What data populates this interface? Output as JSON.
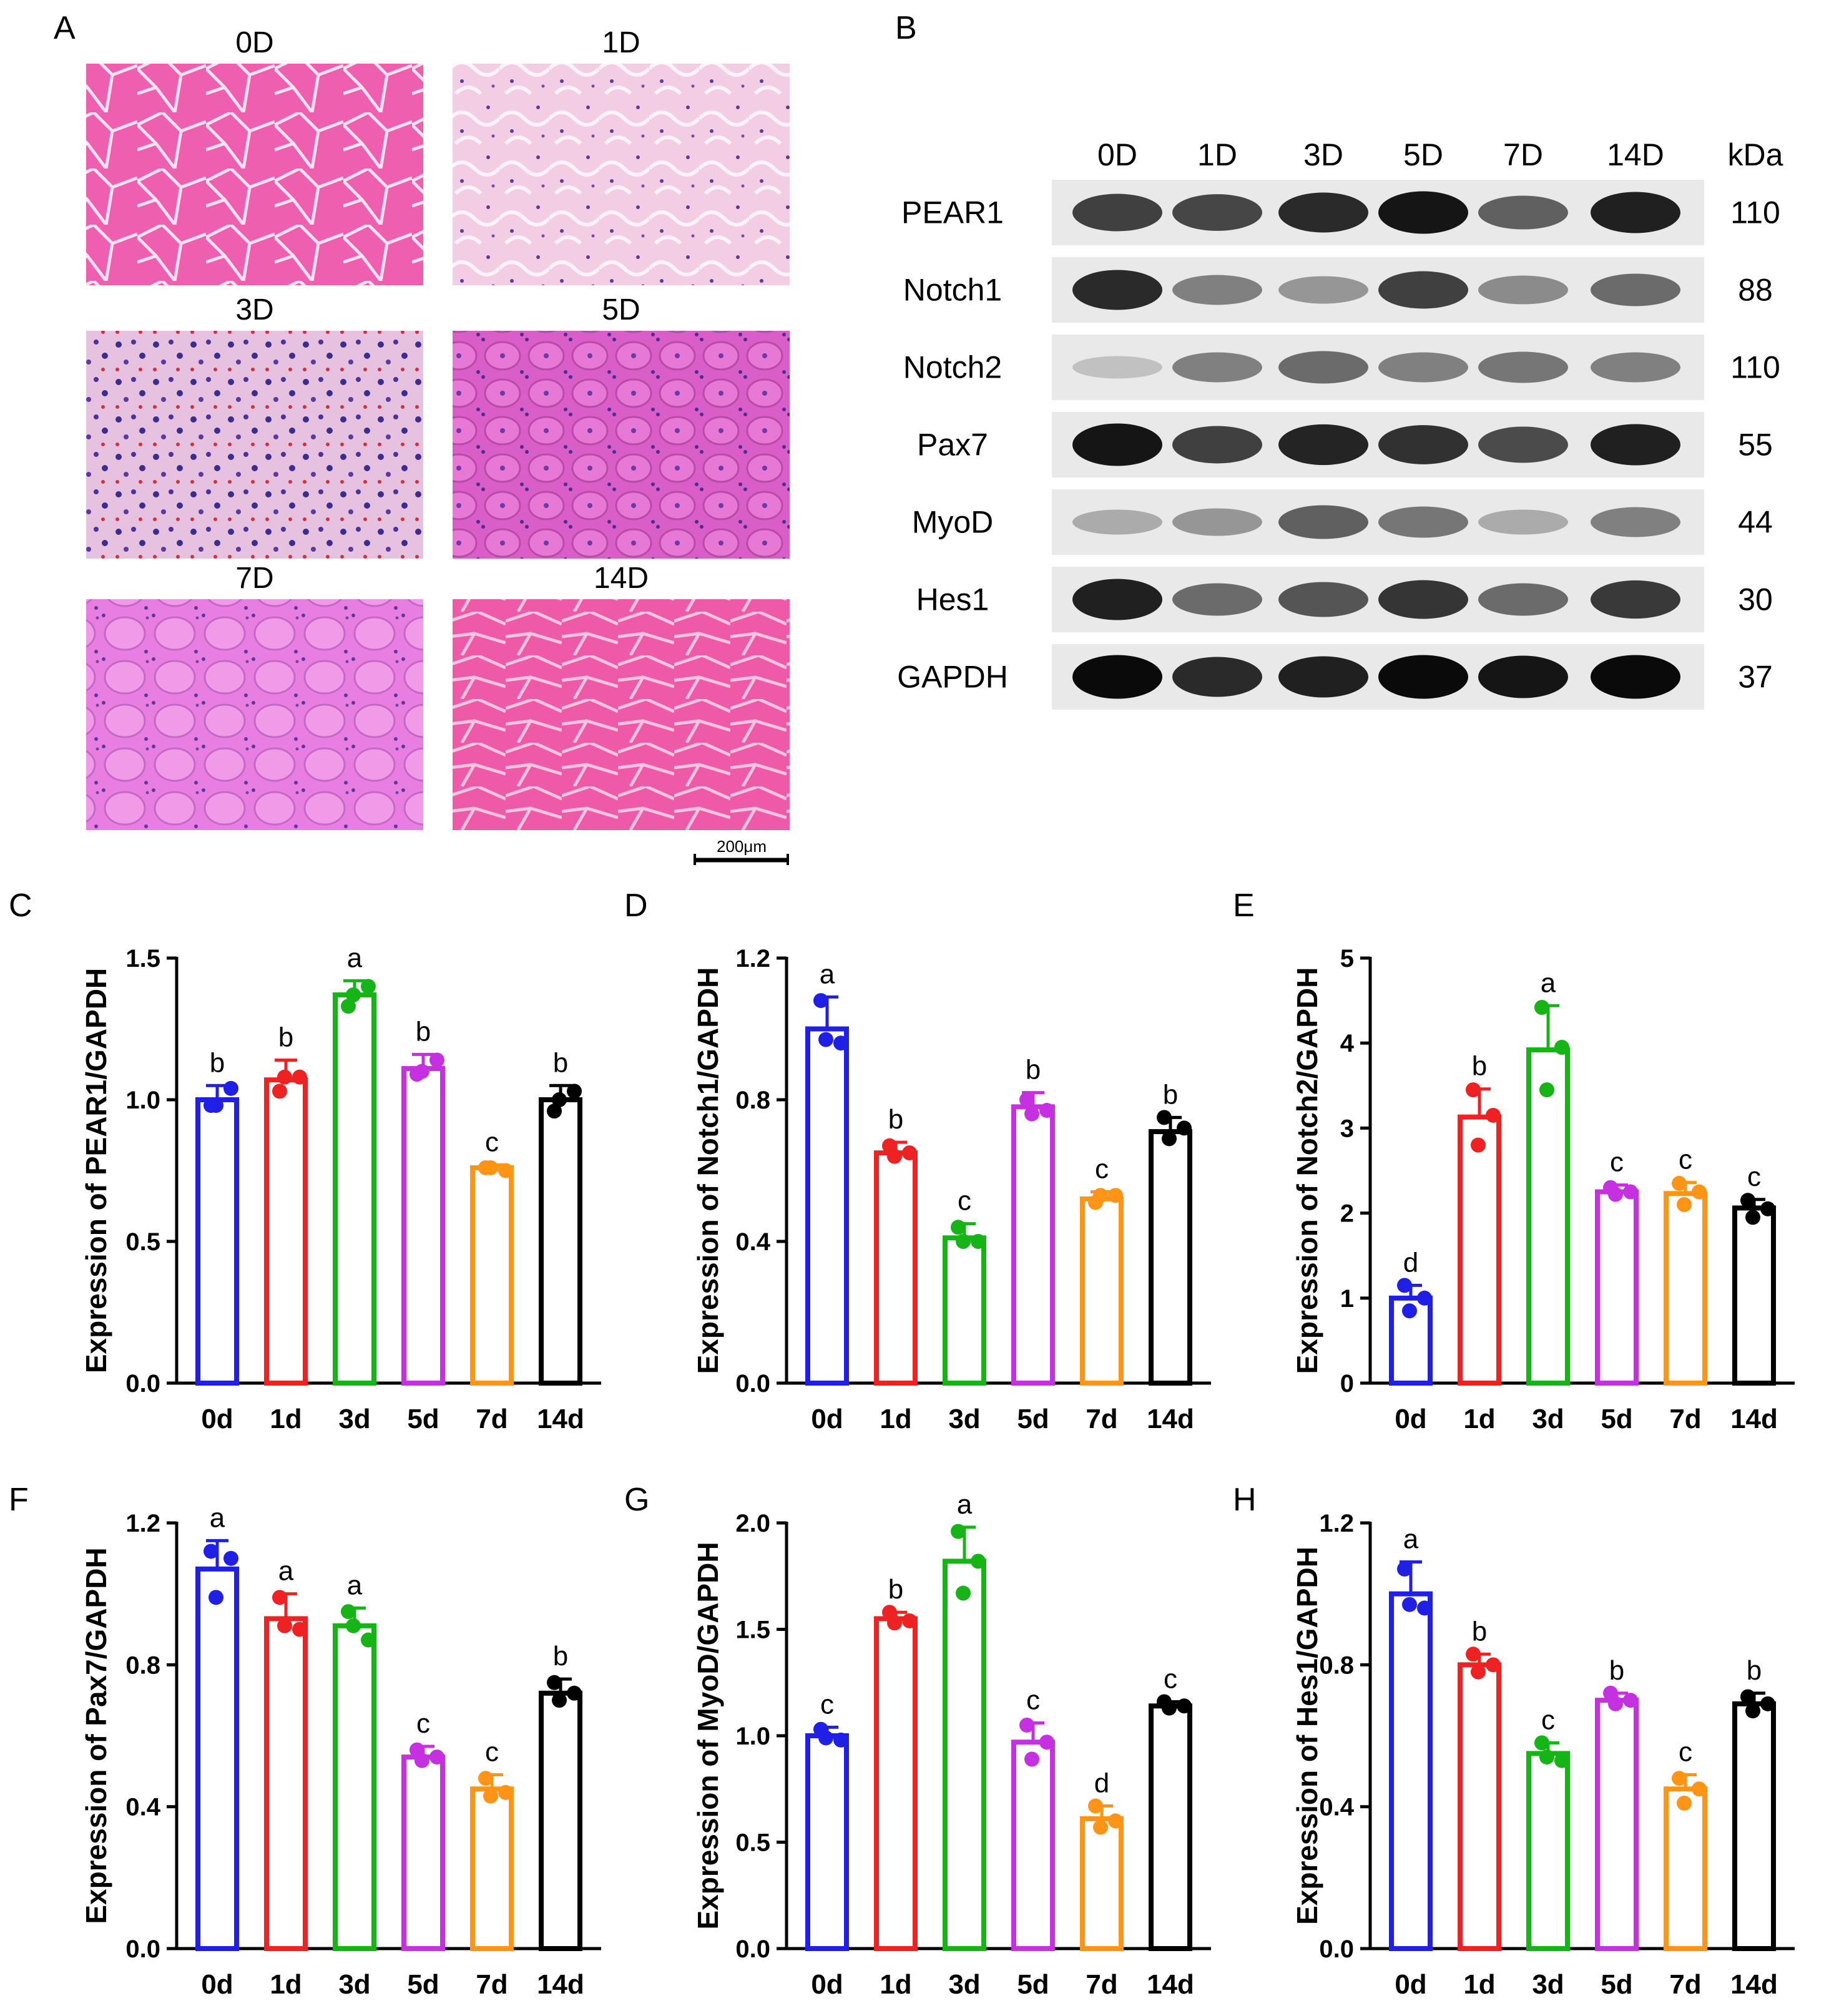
{
  "panel_A": {
    "letter": "A",
    "days": [
      "0D",
      "1D",
      "3D",
      "5D",
      "7D",
      "14D"
    ],
    "scale_bar": "200μm"
  },
  "panel_B": {
    "letter": "B",
    "lanes": [
      "0D",
      "1D",
      "3D",
      "5D",
      "7D",
      "14D"
    ],
    "kda_header": "kDa",
    "proteins": [
      {
        "name": "PEAR1",
        "kda": "110",
        "intensity": [
          0.75,
          0.72,
          0.85,
          0.95,
          0.6,
          0.9
        ]
      },
      {
        "name": "Notch1",
        "kda": "88",
        "intensity": [
          0.85,
          0.45,
          0.35,
          0.75,
          0.4,
          0.55
        ]
      },
      {
        "name": "Notch2",
        "kda": "110",
        "intensity": [
          0.15,
          0.45,
          0.55,
          0.45,
          0.5,
          0.45
        ]
      },
      {
        "name": "Pax7",
        "kda": "55",
        "intensity": [
          0.95,
          0.75,
          0.88,
          0.82,
          0.7,
          0.9
        ]
      },
      {
        "name": "MyoD",
        "kda": "44",
        "intensity": [
          0.25,
          0.35,
          0.6,
          0.5,
          0.25,
          0.45
        ]
      },
      {
        "name": "Hes1",
        "kda": "30",
        "intensity": [
          0.9,
          0.55,
          0.65,
          0.8,
          0.55,
          0.78
        ]
      },
      {
        "name": "GAPDH",
        "kda": "37",
        "intensity": [
          1.0,
          0.85,
          0.9,
          1.0,
          0.95,
          1.0
        ]
      }
    ]
  },
  "colors": [
    "#1f1fe6",
    "#ee2222",
    "#17b417",
    "#c530e0",
    "#ff9416",
    "#000000"
  ],
  "chart_data": [
    {
      "panel": "C",
      "type": "bar",
      "ylabel": "Expression of PEAR1/GAPDH",
      "categories": [
        "0d",
        "1d",
        "3d",
        "5d",
        "7d",
        "14d"
      ],
      "values": [
        1.0,
        1.07,
        1.37,
        1.11,
        0.76,
        1.0
      ],
      "errors": [
        0.05,
        0.07,
        0.05,
        0.05,
        0.01,
        0.05
      ],
      "points": [
        [
          0.98,
          1.04,
          0.98
        ],
        [
          1.03,
          1.08,
          1.08
        ],
        [
          1.33,
          1.4,
          1.37
        ],
        [
          1.09,
          1.14,
          1.1
        ],
        [
          0.76,
          0.75,
          0.76
        ],
        [
          0.96,
          1.03,
          1.0
        ]
      ],
      "sig": [
        "b",
        "b",
        "a",
        "b",
        "c",
        "b"
      ],
      "ylim": [
        0,
        1.5
      ],
      "yticks": [
        "0.0",
        "0.5",
        "1.0",
        "1.5"
      ]
    },
    {
      "panel": "D",
      "type": "bar",
      "ylabel": "Expression of Notch1/GAPDH",
      "categories": [
        "0d",
        "1d",
        "3d",
        "5d",
        "7d",
        "14d"
      ],
      "values": [
        1.0,
        0.65,
        0.41,
        0.78,
        0.52,
        0.71
      ],
      "errors": [
        0.09,
        0.03,
        0.04,
        0.04,
        0.02,
        0.04
      ],
      "points": [
        [
          1.08,
          0.96,
          0.97
        ],
        [
          0.67,
          0.65,
          0.64
        ],
        [
          0.44,
          0.4,
          0.4
        ],
        [
          0.8,
          0.77,
          0.76
        ],
        [
          0.51,
          0.53,
          0.53
        ],
        [
          0.75,
          0.72,
          0.69
        ]
      ],
      "sig": [
        "a",
        "b",
        "c",
        "b",
        "c",
        "b"
      ],
      "ylim": [
        0,
        1.2
      ],
      "yticks": [
        "0.0",
        "0.4",
        "0.8",
        "1.2"
      ]
    },
    {
      "panel": "E",
      "type": "bar",
      "ylabel": "Expression of Notch2/GAPDH",
      "categories": [
        "0d",
        "1d",
        "3d",
        "5d",
        "7d",
        "14d"
      ],
      "values": [
        1.0,
        3.13,
        3.92,
        2.25,
        2.23,
        2.06
      ],
      "errors": [
        0.15,
        0.33,
        0.52,
        0.08,
        0.13,
        0.1
      ],
      "points": [
        [
          1.15,
          1.0,
          0.85
        ],
        [
          3.45,
          3.15,
          2.8
        ],
        [
          4.42,
          3.95,
          3.45
        ],
        [
          2.3,
          2.25,
          2.22
        ],
        [
          2.35,
          2.25,
          2.1
        ],
        [
          2.15,
          2.05,
          1.95
        ]
      ],
      "sig": [
        "d",
        "b",
        "a",
        "c",
        "c",
        "c"
      ],
      "ylim": [
        0,
        5
      ],
      "yticks": [
        "0",
        "1",
        "2",
        "3",
        "4",
        "5"
      ]
    },
    {
      "panel": "F",
      "type": "bar",
      "ylabel": "Expression of Pax7/GAPDH",
      "categories": [
        "0d",
        "1d",
        "3d",
        "5d",
        "7d",
        "14d"
      ],
      "values": [
        1.07,
        0.93,
        0.91,
        0.54,
        0.45,
        0.72
      ],
      "errors": [
        0.08,
        0.07,
        0.05,
        0.03,
        0.04,
        0.04
      ],
      "points": [
        [
          1.12,
          1.1,
          0.99
        ],
        [
          0.99,
          0.9,
          0.91
        ],
        [
          0.95,
          0.87,
          0.91
        ],
        [
          0.56,
          0.54,
          0.53
        ],
        [
          0.48,
          0.44,
          0.43
        ],
        [
          0.75,
          0.72,
          0.7
        ]
      ],
      "sig": [
        "a",
        "a",
        "a",
        "c",
        "c",
        "b"
      ],
      "ylim": [
        0,
        1.2
      ],
      "yticks": [
        "0.0",
        "0.4",
        "0.8",
        "1.2"
      ]
    },
    {
      "panel": "G",
      "type": "bar",
      "ylabel": "Expression of MyoD/GAPDH",
      "categories": [
        "0d",
        "1d",
        "3d",
        "5d",
        "7d",
        "14d"
      ],
      "values": [
        1.0,
        1.55,
        1.82,
        0.97,
        0.61,
        1.14
      ],
      "errors": [
        0.04,
        0.03,
        0.16,
        0.09,
        0.06,
        0.02
      ],
      "points": [
        [
          1.03,
          0.98,
          0.99
        ],
        [
          1.58,
          1.54,
          1.53
        ],
        [
          1.96,
          1.82,
          1.67
        ],
        [
          1.05,
          0.97,
          0.89
        ],
        [
          0.67,
          0.6,
          0.57
        ],
        [
          1.16,
          1.14,
          1.13
        ]
      ],
      "sig": [
        "c",
        "b",
        "a",
        "c",
        "d",
        "c"
      ],
      "ylim": [
        0,
        2.0
      ],
      "yticks": [
        "0.0",
        "0.5",
        "1.0",
        "1.5",
        "2.0"
      ]
    },
    {
      "panel": "H",
      "type": "bar",
      "ylabel": "Expression of Hes1/GAPDH",
      "categories": [
        "0d",
        "1d",
        "3d",
        "5d",
        "7d",
        "14d"
      ],
      "values": [
        1.0,
        0.8,
        0.55,
        0.7,
        0.45,
        0.69
      ],
      "errors": [
        0.09,
        0.03,
        0.03,
        0.02,
        0.04,
        0.03
      ],
      "points": [
        [
          1.07,
          0.96,
          0.97
        ],
        [
          0.83,
          0.8,
          0.78
        ],
        [
          0.58,
          0.53,
          0.54
        ],
        [
          0.72,
          0.7,
          0.69
        ],
        [
          0.48,
          0.45,
          0.41
        ],
        [
          0.71,
          0.69,
          0.67
        ]
      ],
      "sig": [
        "a",
        "b",
        "c",
        "b",
        "c",
        "b"
      ],
      "ylim": [
        0,
        1.2
      ],
      "yticks": [
        "0.0",
        "0.4",
        "0.8",
        "1.2"
      ]
    }
  ]
}
